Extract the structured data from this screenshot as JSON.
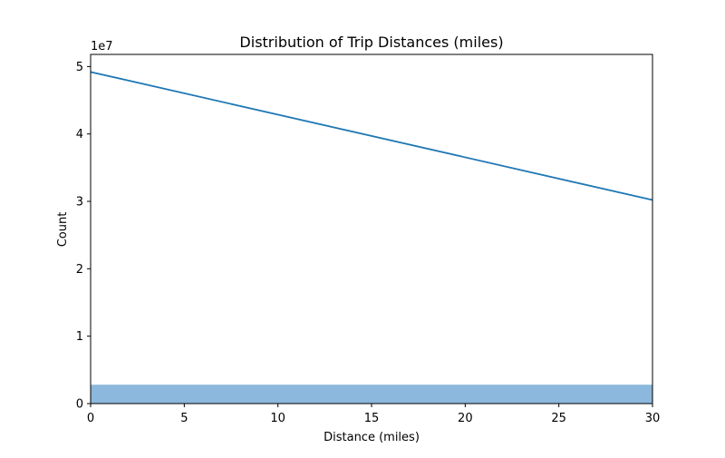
{
  "chart_data": {
    "type": "bar",
    "title": "Distribution of Trip Distances (miles)",
    "xlabel": "Distance (miles)",
    "ylabel": "Count",
    "xlim": [
      0,
      30
    ],
    "ylim": [
      0,
      51800000
    ],
    "y_offset_label": "1e7",
    "x_ticks": [
      0,
      5,
      10,
      15,
      20,
      25,
      30
    ],
    "x_tick_labels": [
      "0",
      "5",
      "10",
      "15",
      "20",
      "25",
      "30"
    ],
    "y_ticks": [
      0,
      10000000,
      20000000,
      30000000,
      40000000,
      50000000
    ],
    "y_tick_labels": [
      "0",
      "1",
      "2",
      "3",
      "4",
      "5"
    ],
    "grid": false,
    "colors": {
      "bar": "#8bb8dc",
      "line": "#1f77b4"
    },
    "bars": [
      {
        "x0": 0,
        "x1": 30,
        "value": 2800000
      }
    ],
    "kde_line": {
      "x": [
        0,
        30
      ],
      "y": [
        49200000,
        30200000
      ]
    }
  }
}
